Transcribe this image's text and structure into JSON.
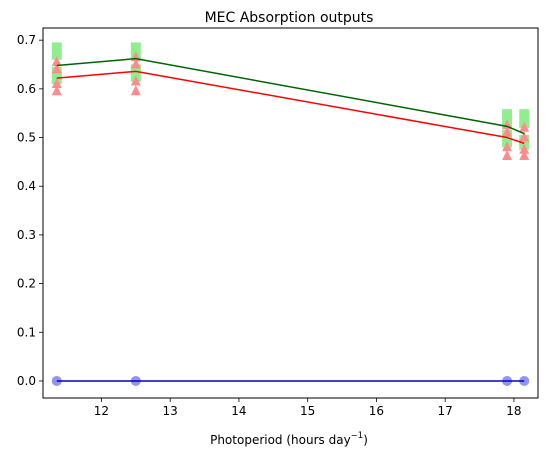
{
  "chart_data": {
    "type": "line",
    "title": "MEC Absorption outputs",
    "xlabel": {
      "prefix": "Photoperiod (hours day",
      "superscript": "−1",
      "suffix": ")"
    },
    "ylabel": "",
    "xlim": [
      11.15,
      18.35
    ],
    "ylim": [
      -0.035,
      0.725
    ],
    "xticks": [
      12,
      13,
      14,
      15,
      16,
      17,
      18
    ],
    "yticks": [
      0.0,
      0.1,
      0.2,
      0.3,
      0.4,
      0.5,
      0.6,
      0.7
    ],
    "grid": false,
    "series": [
      {
        "marker": "square",
        "color": "#90ee90",
        "points": [
          {
            "x": 11.35,
            "y": 0.685
          },
          {
            "x": 11.35,
            "y": 0.67
          },
          {
            "x": 11.35,
            "y": 0.635
          },
          {
            "x": 11.35,
            "y": 0.62
          },
          {
            "x": 12.5,
            "y": 0.685
          },
          {
            "x": 12.5,
            "y": 0.67
          },
          {
            "x": 12.5,
            "y": 0.64
          },
          {
            "x": 12.5,
            "y": 0.625
          },
          {
            "x": 17.9,
            "y": 0.548
          },
          {
            "x": 17.9,
            "y": 0.53
          },
          {
            "x": 17.9,
            "y": 0.505
          },
          {
            "x": 17.9,
            "y": 0.49
          },
          {
            "x": 18.15,
            "y": 0.548
          },
          {
            "x": 18.15,
            "y": 0.53
          },
          {
            "x": 18.15,
            "y": 0.495
          },
          {
            "x": 18.15,
            "y": 0.485
          }
        ],
        "line": {
          "color": "#006400",
          "x": [
            11.35,
            12.5,
            17.9,
            18.15
          ],
          "y": [
            0.648,
            0.662,
            0.523,
            0.508
          ]
        }
      },
      {
        "marker": "triangle",
        "color": "#ff8c8c",
        "points": [
          {
            "x": 11.35,
            "y": 0.655
          },
          {
            "x": 11.35,
            "y": 0.64
          },
          {
            "x": 11.35,
            "y": 0.61
          },
          {
            "x": 11.35,
            "y": 0.595
          },
          {
            "x": 12.5,
            "y": 0.665
          },
          {
            "x": 12.5,
            "y": 0.65
          },
          {
            "x": 12.5,
            "y": 0.615
          },
          {
            "x": 12.5,
            "y": 0.595
          },
          {
            "x": 17.9,
            "y": 0.525
          },
          {
            "x": 17.9,
            "y": 0.51
          },
          {
            "x": 17.9,
            "y": 0.48
          },
          {
            "x": 17.9,
            "y": 0.462
          },
          {
            "x": 18.15,
            "y": 0.52
          },
          {
            "x": 18.15,
            "y": 0.5
          },
          {
            "x": 18.15,
            "y": 0.475
          },
          {
            "x": 18.15,
            "y": 0.462
          }
        ],
        "line": {
          "color": "#ff0000",
          "x": [
            11.35,
            12.5,
            17.9,
            18.15
          ],
          "y": [
            0.622,
            0.636,
            0.5,
            0.488
          ]
        }
      },
      {
        "marker": "circle",
        "color": "#8080f0",
        "points": [
          {
            "x": 11.35,
            "y": 0.0
          },
          {
            "x": 12.5,
            "y": 0.0
          },
          {
            "x": 17.9,
            "y": 0.0
          },
          {
            "x": 18.15,
            "y": 0.0
          }
        ],
        "line": {
          "color": "#0000cd",
          "x": [
            11.35,
            12.5,
            17.9,
            18.15
          ],
          "y": [
            0.0,
            0.0,
            0.0,
            0.0
          ]
        }
      }
    ]
  }
}
